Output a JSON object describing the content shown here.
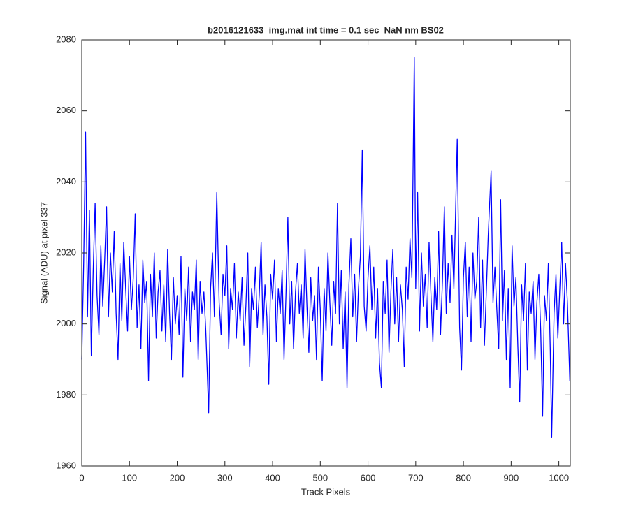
{
  "chart_data": {
    "type": "line",
    "title": "b2016121633_img.mat int time = 0.1 sec  NaN nm BS02",
    "xlabel": "Track Pixels",
    "ylabel": "Signal (ADU) at pixel 337",
    "color": "#0000ff",
    "xlim": [
      0,
      1024
    ],
    "ylim": [
      1960,
      2080
    ],
    "xticks": [
      0,
      100,
      200,
      300,
      400,
      500,
      600,
      700,
      800,
      900,
      1000
    ],
    "yticks": [
      1960,
      1980,
      2000,
      2020,
      2040,
      2060,
      2080
    ],
    "x": [
      0,
      4,
      8,
      12,
      16,
      20,
      24,
      28,
      32,
      36,
      40,
      44,
      48,
      52,
      56,
      60,
      64,
      68,
      72,
      76,
      80,
      84,
      88,
      92,
      96,
      100,
      104,
      108,
      112,
      116,
      120,
      124,
      128,
      132,
      136,
      140,
      144,
      148,
      152,
      156,
      160,
      164,
      168,
      172,
      176,
      180,
      184,
      188,
      192,
      196,
      200,
      204,
      208,
      212,
      216,
      220,
      224,
      228,
      232,
      236,
      240,
      244,
      248,
      252,
      256,
      260,
      266,
      270,
      274,
      278,
      283,
      288,
      292,
      296,
      300,
      304,
      308,
      312,
      316,
      320,
      324,
      328,
      332,
      336,
      340,
      344,
      348,
      352,
      356,
      360,
      364,
      368,
      372,
      376,
      380,
      384,
      388,
      392,
      396,
      400,
      404,
      408,
      412,
      416,
      420,
      424,
      428,
      432,
      436,
      440,
      444,
      448,
      452,
      456,
      460,
      464,
      468,
      472,
      476,
      480,
      484,
      488,
      492,
      496,
      500,
      504,
      508,
      512,
      516,
      520,
      524,
      528,
      532,
      536,
      540,
      544,
      548,
      552,
      556,
      560,
      564,
      568,
      572,
      576,
      580,
      584,
      588,
      592,
      596,
      600,
      604,
      608,
      612,
      616,
      620,
      624,
      628,
      632,
      636,
      640,
      644,
      648,
      652,
      656,
      660,
      664,
      668,
      672,
      676,
      680,
      684,
      688,
      692,
      697,
      700,
      704,
      708,
      712,
      716,
      720,
      724,
      728,
      732,
      736,
      740,
      744,
      748,
      752,
      756,
      760,
      764,
      768,
      772,
      776,
      780,
      787,
      792,
      796,
      800,
      804,
      808,
      812,
      816,
      820,
      824,
      828,
      832,
      836,
      840,
      844,
      848,
      852,
      858,
      862,
      866,
      870,
      874,
      878,
      882,
      886,
      890,
      894,
      898,
      902,
      906,
      910,
      914,
      918,
      922,
      926,
      930,
      934,
      938,
      942,
      946,
      950,
      954,
      958,
      962,
      966,
      970,
      974,
      978,
      982,
      985,
      990,
      994,
      998,
      1002,
      1006,
      1010,
      1014,
      1018,
      1023
    ],
    "values": [
      1990,
      2017,
      2054,
      2002,
      2032,
      1991,
      2015,
      2034,
      2008,
      1997,
      2022,
      2005,
      2018,
      2033,
      2002,
      2020,
      2009,
      2026,
      2003,
      1990,
      2017,
      2001,
      2023,
      2010,
      1998,
      2019,
      2004,
      2013,
      2031,
      1999,
      2011,
      1993,
      2018,
      2006,
      2012,
      1984,
      2014,
      2002,
      2020,
      1996,
      2009,
      2015,
      1998,
      2011,
      1995,
      2021,
      2003,
      1990,
      2013,
      2000,
      2008,
      1997,
      2019,
      1985,
      2010,
      2001,
      2016,
      1995,
      2009,
      2004,
      2018,
      1990,
      2012,
      2003,
      2009,
      1998,
      1975,
      2010,
      2020,
      2002,
      2037,
      2006,
      1997,
      2014,
      2008,
      2022,
      1993,
      2010,
      2004,
      2017,
      1996,
      2009,
      2001,
      2013,
      1994,
      2005,
      2020,
      1988,
      2010,
      2004,
      2016,
      1999,
      2008,
      2023,
      1997,
      2011,
      2002,
      1983,
      2014,
      2007,
      2018,
      1995,
      2010,
      2003,
      2015,
      1990,
      2008,
      2030,
      2000,
      2012,
      1993,
      2009,
      2017,
      2003,
      2011,
      1996,
      2021,
      2005,
      1992,
      2013,
      2001,
      2008,
      1990,
      2016,
      2004,
      1984,
      2010,
      1998,
      2020,
      2006,
      1994,
      2012,
      2003,
      2034,
      2000,
      2015,
      1993,
      2009,
      1982,
      2011,
      2024,
      2002,
      2014,
      1995,
      2010,
      2019,
      2049,
      2005,
      1998,
      2013,
      2022,
      2004,
      2016,
      1996,
      2010,
      1989,
      1982,
      2012,
      2003,
      2018,
      1992,
      2009,
      2021,
      2000,
      2013,
      1995,
      2011,
      2004,
      1988,
      2016,
      2007,
      2024,
      2013,
      2075,
      2010,
      2037,
      1998,
      2020,
      2005,
      2014,
      1999,
      2023,
      2008,
      1995,
      2013,
      2004,
      2026,
      1997,
      2012,
      2033,
      2003,
      2017,
      2006,
      2025,
      2010,
      2052,
      1999,
      1987,
      2013,
      2023,
      2002,
      2016,
      1995,
      2020,
      2007,
      2012,
      2030,
      1999,
      2018,
      1994,
      2009,
      2025,
      2043,
      2006,
      2016,
      2004,
      1993,
      2035,
      2001,
      2015,
      1990,
      2010,
      1982,
      2022,
      2005,
      2013,
      1994,
      1978,
      2011,
      2001,
      2017,
      1987,
      2009,
      2003,
      2012,
      1990,
      2006,
      2014,
      1998,
      1974,
      2008,
      2001,
      2017,
      1993,
      1968,
      2003,
      2014,
      1996,
      2010,
      2023,
      2000,
      2017,
      2006,
      1984
    ]
  }
}
